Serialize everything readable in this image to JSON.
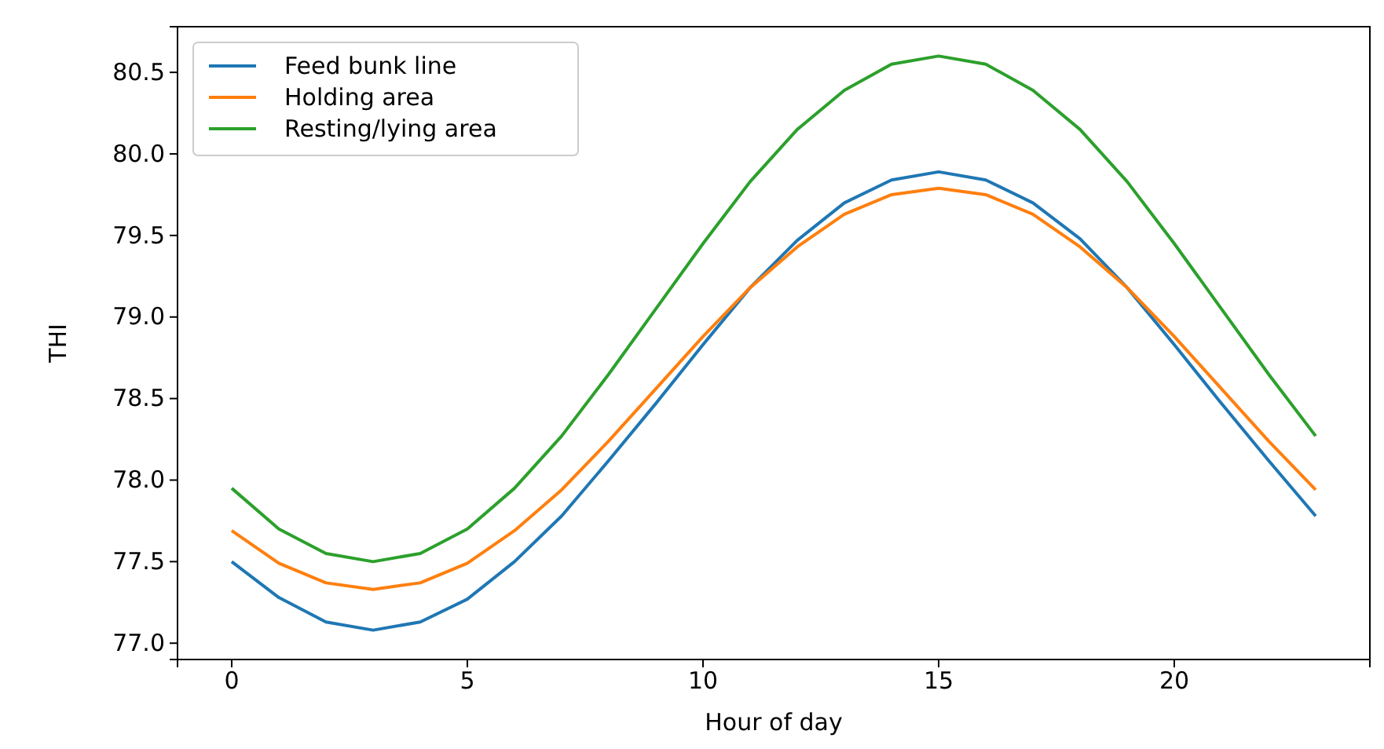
{
  "chart_data": {
    "type": "line",
    "xlabel": "Hour of day",
    "ylabel": "THI",
    "x": [
      0,
      1,
      2,
      3,
      4,
      5,
      6,
      7,
      8,
      9,
      10,
      11,
      12,
      13,
      14,
      15,
      16,
      17,
      18,
      19,
      20,
      21,
      22,
      23
    ],
    "series": [
      {
        "name": "Feed bunk line",
        "color": "#1f77b4",
        "values": [
          77.5,
          77.28,
          77.13,
          77.08,
          77.13,
          77.27,
          77.5,
          77.78,
          78.12,
          78.47,
          78.83,
          79.18,
          79.47,
          79.7,
          79.84,
          79.89,
          79.84,
          79.7,
          79.48,
          79.18,
          78.83,
          78.47,
          78.12,
          77.78
        ]
      },
      {
        "name": "Holding area",
        "color": "#ff7f0e",
        "values": [
          77.69,
          77.49,
          77.37,
          77.33,
          77.37,
          77.49,
          77.69,
          77.94,
          78.24,
          78.56,
          78.88,
          79.18,
          79.43,
          79.63,
          79.75,
          79.79,
          79.75,
          79.63,
          79.43,
          79.18,
          78.88,
          78.56,
          78.24,
          77.94
        ]
      },
      {
        "name": "Resting/lying area",
        "color": "#2ca02c",
        "values": [
          77.95,
          77.7,
          77.55,
          77.5,
          77.55,
          77.7,
          77.95,
          78.27,
          78.65,
          79.05,
          79.45,
          79.83,
          80.15,
          80.39,
          80.55,
          80.6,
          80.55,
          80.39,
          80.15,
          79.83,
          79.45,
          79.05,
          78.65,
          78.27
        ]
      }
    ],
    "xlim": [
      -1.15,
      24.15
    ],
    "ylim": [
      76.9,
      80.78
    ],
    "xticks": [
      0,
      5,
      10,
      15,
      20
    ],
    "yticks": [
      {
        "value": 77,
        "label": "77.0"
      },
      {
        "value": 77.5,
        "label": "77.5"
      },
      {
        "value": 78,
        "label": "78.0"
      },
      {
        "value": 78.5,
        "label": "78.5"
      },
      {
        "value": 79,
        "label": "79.0"
      },
      {
        "value": 79.5,
        "label": "79.5"
      },
      {
        "value": 80,
        "label": "80.0"
      },
      {
        "value": 80.5,
        "label": "80.5"
      }
    ],
    "legend": "top left",
    "grid": false,
    "marker": "none",
    "line_style": "solid"
  }
}
